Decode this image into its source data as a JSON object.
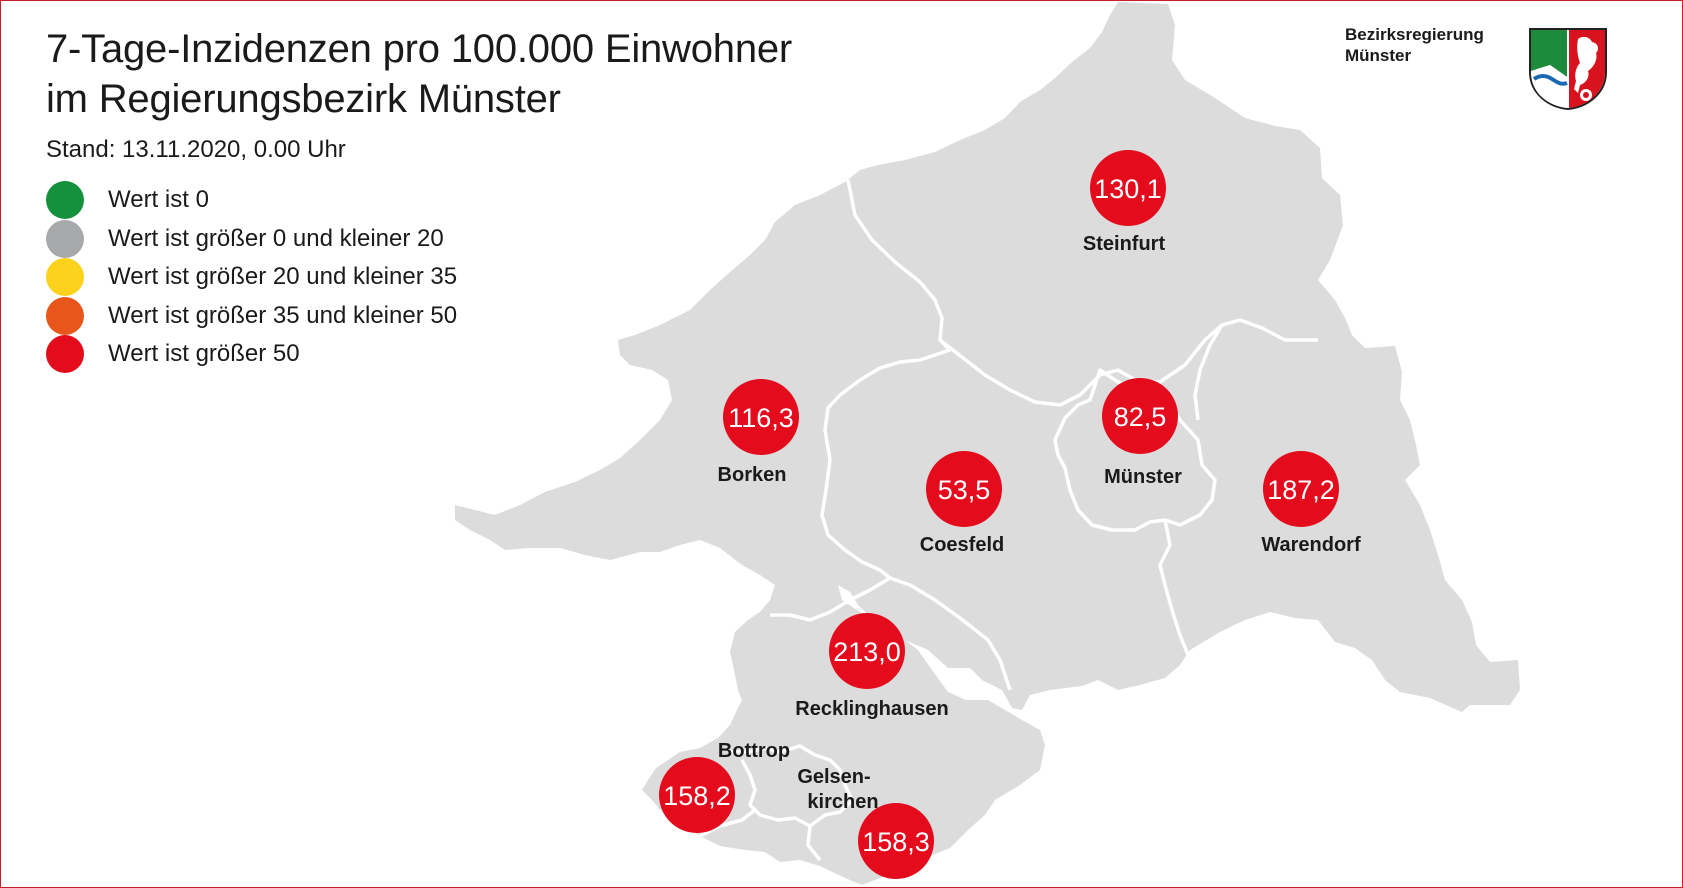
{
  "header": {
    "title": "7-Tage-Inzidenzen pro 100.000 Einwohner\nim Regierungsbezirk Münster",
    "stand": "Stand: 13.11.2020, 0.00 Uhr"
  },
  "logo": {
    "line1": "Bezirksregierung",
    "line2": "Münster"
  },
  "legend": [
    {
      "color": "#13913c",
      "label": "Wert ist 0"
    },
    {
      "color": "#a7a8aa",
      "label": "Wert ist größer 0 und kleiner 20"
    },
    {
      "color": "#fcd21c",
      "label": "Wert ist größer 20 und kleiner 35"
    },
    {
      "color": "#e8561b",
      "label": "Wert ist größer 35 und kleiner 50"
    },
    {
      "color": "#e30b1c",
      "label": "Wert ist größer 50"
    }
  ],
  "colors": {
    "region_fill": "#dcdcdd",
    "border": "#ffffff",
    "marker": "#e30b1c"
  },
  "districts": [
    {
      "name": "Steinfurt",
      "value": "130,1"
    },
    {
      "name": "Borken",
      "value": "116,3"
    },
    {
      "name": "Münster",
      "value": "82,5"
    },
    {
      "name": "Coesfeld",
      "value": "53,5"
    },
    {
      "name": "Warendorf",
      "value": "187,2"
    },
    {
      "name": "Recklinghausen",
      "value": "213,0"
    },
    {
      "name": "Bottrop",
      "value": "158,2"
    },
    {
      "name_line1": "Gelsen-",
      "name_line2": "kirchen",
      "value": "158,3"
    }
  ]
}
